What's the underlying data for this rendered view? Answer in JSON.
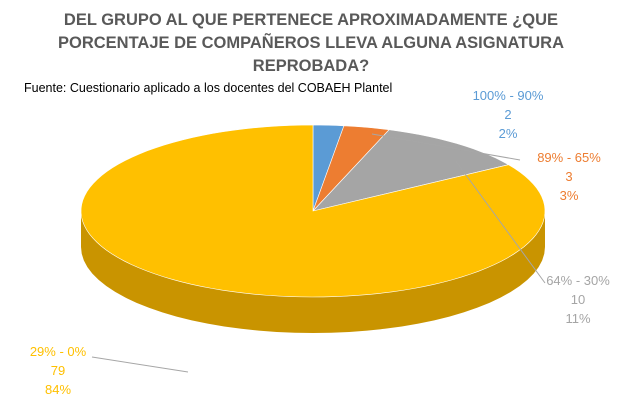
{
  "chart_data": {
    "type": "pie",
    "title_lines": [
      "DEL GRUPO AL QUE PERTENECE APROXIMADAMENTE ¿QUE",
      "PORCENTAJE DE COMPAÑEROS LLEVA ALGUNA ASIGNATURA",
      "REPROBADA?"
    ],
    "source": "Fuente: Cuestionario aplicado a los docentes del COBAEH Plantel",
    "three_d": true,
    "slices": [
      {
        "category": "100% - 90%",
        "value": 2,
        "percent": "2%",
        "color": "#5B9BD5",
        "dark": "#3F74A8"
      },
      {
        "category": "89% - 65%",
        "value": 3,
        "percent": "3%",
        "color": "#ED7D31",
        "dark": "#B85A1C"
      },
      {
        "category": "64% - 30%",
        "value": 10,
        "percent": "11%",
        "color": "#A5A5A5",
        "dark": "#7A7A7A"
      },
      {
        "category": "29% - 0%",
        "value": 79,
        "percent": "84%",
        "color": "#FFC000",
        "dark": "#C99400"
      }
    ]
  }
}
